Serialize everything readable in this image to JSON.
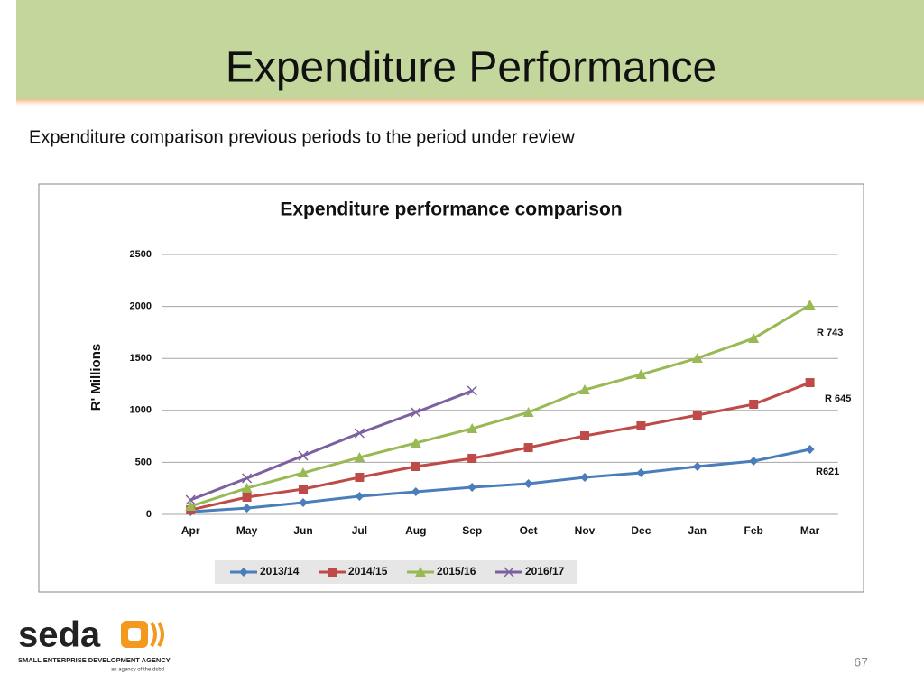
{
  "slide": {
    "title": "Expenditure Performance",
    "subtitle": "Expenditure comparison previous periods to the period under review",
    "page_number": "67",
    "logo": {
      "name": "seda",
      "tagline": "SMALL ENTERPRISE DEVELOPMENT AGENCY",
      "note": "an agency of the dsbd"
    }
  },
  "chart_data": {
    "type": "line",
    "title": "Expenditure performance comparison",
    "y_label": "R' Millions",
    "categories": [
      "Apr",
      "May",
      "Jun",
      "Jul",
      "Aug",
      "Sep",
      "Oct",
      "Nov",
      "Dec",
      "Jan",
      "Feb",
      "Mar"
    ],
    "series": [
      {
        "name": "2013/14",
        "color": "#4a7ebb",
        "marker": "diamond",
        "values": [
          25,
          60,
          113,
          174,
          217,
          260,
          295,
          356,
          399,
          460,
          512,
          625
        ]
      },
      {
        "name": "2014/15",
        "color": "#be4b48",
        "marker": "square",
        "values": [
          43,
          165,
          243,
          356,
          460,
          538,
          642,
          755,
          851,
          955,
          1059,
          1267
        ]
      },
      {
        "name": "2015/16",
        "color": "#98b954",
        "marker": "triangle",
        "values": [
          78,
          252,
          399,
          547,
          686,
          825,
          981,
          1198,
          1345,
          1502,
          1693,
          2014
        ]
      },
      {
        "name": "2016/17",
        "color": "#7d60a0",
        "marker": "x",
        "values": [
          139,
          347,
          564,
          781,
          981,
          1189,
          null,
          null,
          null,
          null,
          null,
          null
        ]
      }
    ],
    "annotations": [
      "R 743",
      "R 645",
      "R621"
    ],
    "ylim": [
      0,
      2500
    ],
    "yticks": [
      0,
      500,
      1000,
      1500,
      2000,
      2500
    ],
    "grid": true,
    "legend": "bottom"
  }
}
